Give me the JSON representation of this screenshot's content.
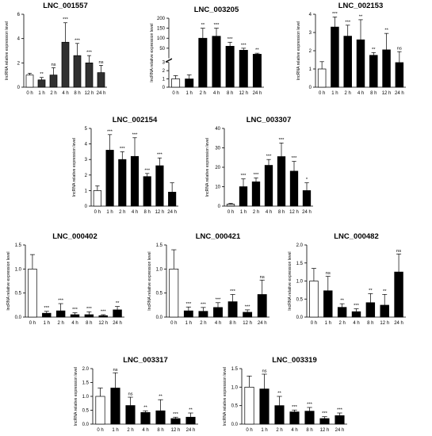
{
  "figure": {
    "width": 545,
    "height": 550
  },
  "chart_data": [
    {
      "type": "bar",
      "title": "LNC_001557",
      "ylabel": "lncRNA relative expression level",
      "categories": [
        "0 h",
        "1 h",
        "2 h",
        "4 h",
        "8 h",
        "12 h",
        "24 h"
      ],
      "values": [
        1.0,
        0.6,
        1.0,
        3.7,
        2.6,
        2.0,
        1.2
      ],
      "errors": [
        0.15,
        0.2,
        0.6,
        1.6,
        1.0,
        0.6,
        0.6
      ],
      "significance": [
        "",
        "**",
        "ns",
        "***",
        "***",
        "***",
        "ns"
      ],
      "bar_fills": [
        "#ffffff",
        "#303030",
        "#303030",
        "#303030",
        "#303030",
        "#303030",
        "#303030"
      ],
      "ylim": [
        0,
        6
      ],
      "yticks": [
        0,
        2,
        4,
        6
      ]
    },
    {
      "type": "bar",
      "title": "LNC_003205",
      "ylabel": "lncRNA relative expression level",
      "categories": [
        "0 h",
        "1 h",
        "2 h",
        "4 h",
        "8 h",
        "12 h",
        "24 h"
      ],
      "values": [
        1.0,
        1.0,
        100,
        110,
        60,
        40,
        20
      ],
      "errors": [
        0.4,
        0.5,
        50,
        40,
        20,
        10,
        5
      ],
      "significance": [
        "",
        "",
        "**",
        "***",
        "***",
        "***",
        "**"
      ],
      "bar_fills": [
        "#ffffff",
        "#000000",
        "#000000",
        "#000000",
        "#000000",
        "#000000",
        "#000000"
      ],
      "broken_axis": true,
      "lower_range": [
        0,
        3
      ],
      "upper_range": [
        0,
        200
      ],
      "yticks_lower": [
        0,
        1,
        2,
        3
      ],
      "yticks_upper": [
        50,
        100,
        150,
        200
      ]
    },
    {
      "type": "bar",
      "title": "LNC_002153",
      "ylabel": "lncRNA relative expression level",
      "categories": [
        "0 h",
        "1 h",
        "2 h",
        "4 h",
        "8 h",
        "12 h",
        "24 h"
      ],
      "values": [
        1.0,
        3.3,
        2.8,
        2.6,
        1.75,
        2.05,
        1.35
      ],
      "errors": [
        0.4,
        0.55,
        0.6,
        1.1,
        0.15,
        0.9,
        0.6
      ],
      "significance": [
        "",
        "***",
        "***",
        "**",
        "**",
        "**",
        "ns"
      ],
      "bar_fills": [
        "#ffffff",
        "#000000",
        "#000000",
        "#000000",
        "#000000",
        "#000000",
        "#000000"
      ],
      "ylim": [
        0,
        4
      ],
      "yticks": [
        0,
        1,
        2,
        3,
        4
      ]
    },
    {
      "type": "bar",
      "title": "LNC_002154",
      "ylabel": "lncRNA relative expression level",
      "categories": [
        "0 h",
        "1 h",
        "2 h",
        "4 h",
        "8 h",
        "12 h",
        "24 h"
      ],
      "values": [
        1.0,
        3.6,
        3.0,
        3.2,
        1.9,
        2.6,
        0.9
      ],
      "errors": [
        0.3,
        1.0,
        0.5,
        1.2,
        0.2,
        0.5,
        0.6
      ],
      "significance": [
        "",
        "***",
        "***",
        "***",
        "***",
        "***",
        ""
      ],
      "bar_fills": [
        "#ffffff",
        "#000000",
        "#000000",
        "#000000",
        "#000000",
        "#000000",
        "#000000"
      ],
      "ylim": [
        0,
        5
      ],
      "yticks": [
        0,
        1,
        2,
        3,
        4,
        5
      ]
    },
    {
      "type": "bar",
      "title": "LNC_003307",
      "ylabel": "lncRNA relative expression level",
      "categories": [
        "0 h",
        "1 h",
        "2 h",
        "4 h",
        "8 h",
        "12 h",
        "24 h"
      ],
      "values": [
        1.0,
        10,
        12.5,
        21,
        25.5,
        18,
        8
      ],
      "errors": [
        0.4,
        4,
        2,
        3,
        7,
        5,
        4
      ],
      "significance": [
        "",
        "***",
        "***",
        "***",
        "***",
        "***",
        "*"
      ],
      "bar_fills": [
        "#cccccc",
        "#000000",
        "#000000",
        "#000000",
        "#000000",
        "#000000",
        "#000000"
      ],
      "ylim": [
        0,
        40
      ],
      "yticks": [
        0,
        10,
        20,
        30,
        40
      ]
    },
    {
      "type": "bar",
      "title": "LNC_000402",
      "ylabel": "lncRNA relative expression level",
      "categories": [
        "0 h",
        "1 h",
        "2 h",
        "4 h",
        "8 h",
        "12 h",
        "24 h"
      ],
      "values": [
        1.0,
        0.08,
        0.13,
        0.05,
        0.05,
        0.03,
        0.15
      ],
      "errors": [
        0.3,
        0.04,
        0.15,
        0.04,
        0.06,
        0.02,
        0.07
      ],
      "significance": [
        "",
        "***",
        "***",
        "***",
        "***",
        "***",
        "**"
      ],
      "bar_fills": [
        "#ffffff",
        "#000000",
        "#000000",
        "#000000",
        "#000000",
        "#000000",
        "#000000"
      ],
      "ylim": [
        0,
        1.5
      ],
      "yticks": [
        0.0,
        0.5,
        1.0,
        1.5
      ]
    },
    {
      "type": "bar",
      "title": "LNC_000421",
      "ylabel": "lncRNA relative expression level",
      "categories": [
        "0 h",
        "1 h",
        "2 h",
        "4 h",
        "8 h",
        "12 h",
        "24 h"
      ],
      "values": [
        1.0,
        0.13,
        0.12,
        0.2,
        0.32,
        0.1,
        0.47
      ],
      "errors": [
        0.4,
        0.08,
        0.08,
        0.1,
        0.15,
        0.05,
        0.3
      ],
      "significance": [
        "",
        "***",
        "***",
        "***",
        "***",
        "***",
        "ns"
      ],
      "bar_fills": [
        "#ffffff",
        "#000000",
        "#000000",
        "#000000",
        "#000000",
        "#000000",
        "#000000"
      ],
      "ylim": [
        0,
        1.5
      ],
      "yticks": [
        0.0,
        0.5,
        1.0,
        1.5
      ]
    },
    {
      "type": "bar",
      "title": "LNC_000482",
      "ylabel": "lncRNA relative expression level",
      "categories": [
        "0 h",
        "1 h",
        "2 h",
        "4 h",
        "8 h",
        "12 h",
        "24 h"
      ],
      "values": [
        1.0,
        0.73,
        0.27,
        0.15,
        0.4,
        0.33,
        1.25
      ],
      "errors": [
        0.35,
        0.4,
        0.1,
        0.08,
        0.25,
        0.3,
        0.5
      ],
      "significance": [
        "",
        "ns",
        "**",
        "***",
        "**",
        "**",
        "ns"
      ],
      "bar_fills": [
        "#ffffff",
        "#000000",
        "#000000",
        "#000000",
        "#000000",
        "#000000",
        "#000000"
      ],
      "ylim": [
        0,
        2.0
      ],
      "yticks": [
        0.0,
        0.5,
        1.0,
        1.5,
        2.0
      ]
    },
    {
      "type": "bar",
      "title": "LNC_003317",
      "ylabel": "lncRNA relative expression level",
      "categories": [
        "0 h",
        "1 h",
        "2 h",
        "4 h",
        "8 h",
        "12 h",
        "24 h"
      ],
      "values": [
        1.0,
        1.3,
        0.67,
        0.42,
        0.48,
        0.2,
        0.25
      ],
      "errors": [
        0.3,
        0.55,
        0.3,
        0.06,
        0.4,
        0.05,
        0.15
      ],
      "significance": [
        "",
        "ns",
        "ns",
        "**",
        "**",
        "***",
        "**"
      ],
      "bar_fills": [
        "#ffffff",
        "#000000",
        "#000000",
        "#000000",
        "#000000",
        "#000000",
        "#000000"
      ],
      "ylim": [
        0,
        2.0
      ],
      "yticks": [
        0.0,
        0.5,
        1.0,
        1.5,
        2.0
      ]
    },
    {
      "type": "bar",
      "title": "LNC_003319",
      "ylabel": "lncRNA relative expression level",
      "categories": [
        "0 h",
        "1 h",
        "2 h",
        "4 h",
        "8 h",
        "12 h",
        "24 h"
      ],
      "values": [
        1.0,
        0.95,
        0.5,
        0.33,
        0.35,
        0.15,
        0.23
      ],
      "errors": [
        0.3,
        0.4,
        0.25,
        0.05,
        0.1,
        0.05,
        0.07
      ],
      "significance": [
        "",
        "ns",
        "**",
        "***",
        "***",
        "***",
        "***"
      ],
      "bar_fills": [
        "#ffffff",
        "#000000",
        "#000000",
        "#000000",
        "#000000",
        "#000000",
        "#000000"
      ],
      "ylim": [
        0,
        1.5
      ],
      "yticks": [
        0.0,
        0.5,
        1.0,
        1.5
      ]
    }
  ]
}
